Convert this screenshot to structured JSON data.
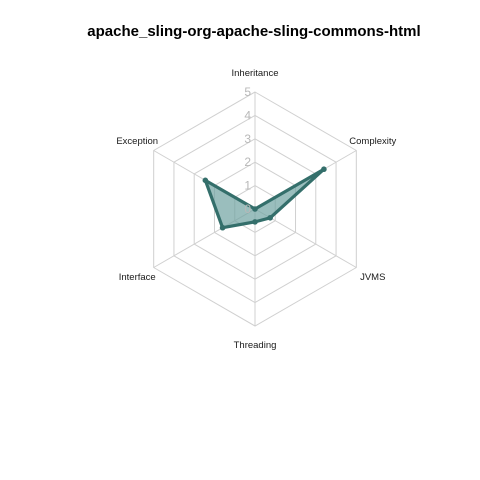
{
  "chart_data": {
    "type": "radar",
    "title": "apache_sling-org-apache-sling-commons-html",
    "axes": [
      "Inheritance",
      "Complexity",
      "JVMS",
      "Threading",
      "Interface",
      "Exception"
    ],
    "range": [
      0,
      5
    ],
    "ticks": [
      "0",
      "1",
      "2",
      "3",
      "4",
      "5"
    ],
    "series": [
      {
        "values": [
          0,
          3.4,
          0.75,
          0.55,
          1.6,
          2.45
        ]
      }
    ],
    "colors": {
      "stroke": "#346F6B",
      "fill": "#6FA3A1",
      "grid": "#d0d0d0"
    },
    "legend": "none"
  }
}
